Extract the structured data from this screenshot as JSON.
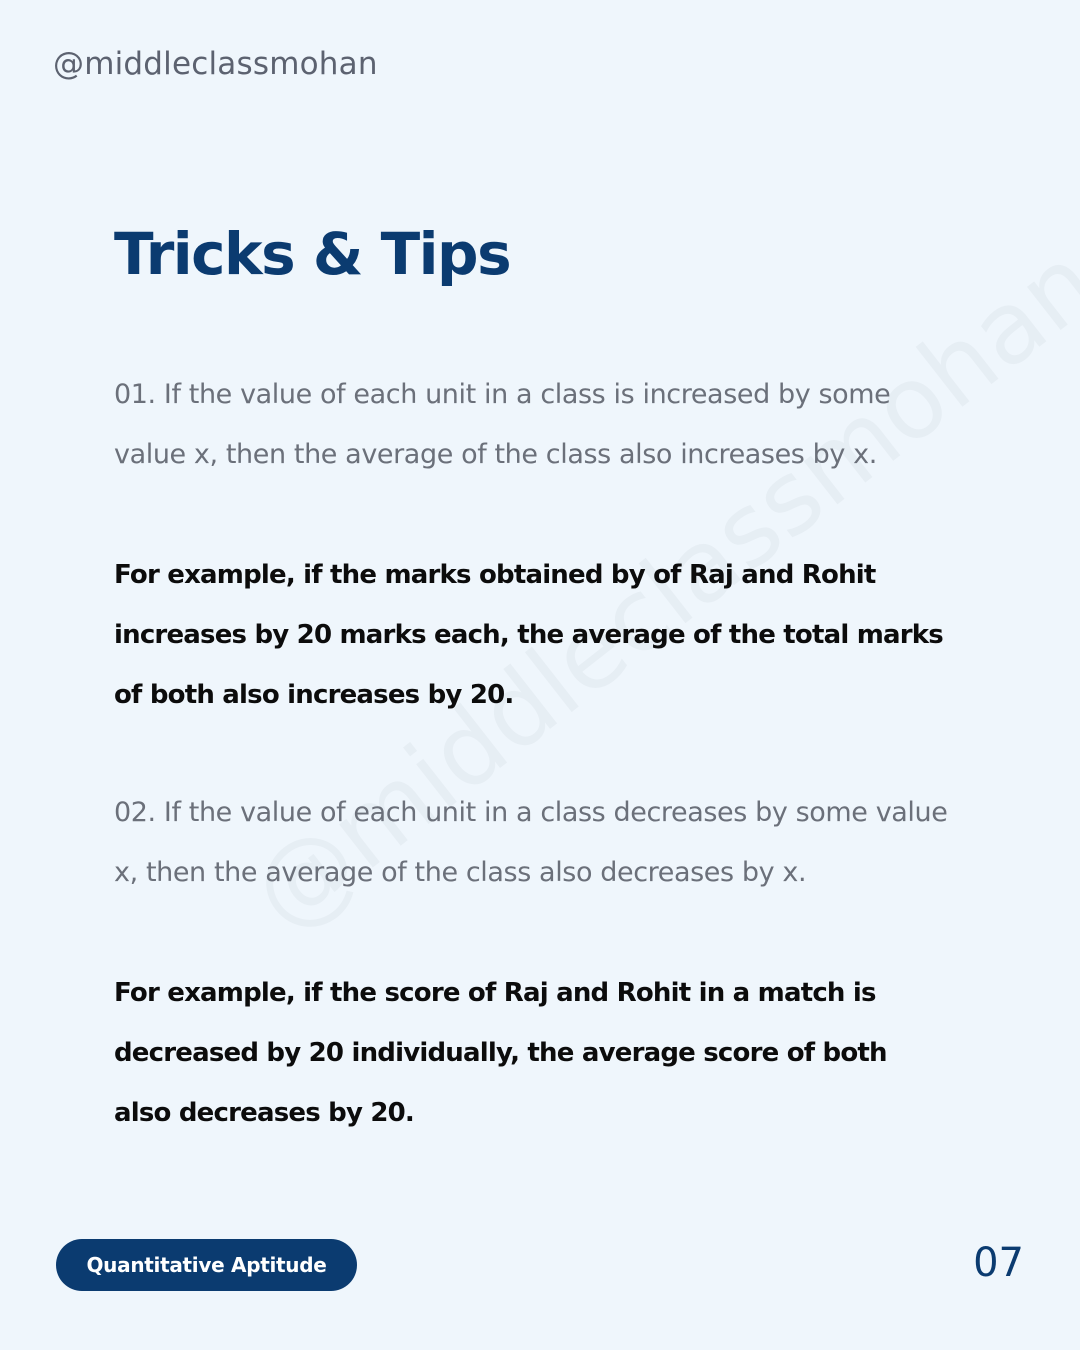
{
  "header": {
    "handle": "@middleclassmohan"
  },
  "watermark": {
    "text": "@middleclassmohan"
  },
  "title": "Tricks & Tips",
  "tips": [
    {
      "text": "01. If the value of each unit in a class is increased by some value x, then the average of the class also increases by x.",
      "example": "For example, if the marks obtained by of Raj and Rohit increases by 20 marks each, the average of the total marks of both also increases by 20."
    },
    {
      "text": "02. If the value of each unit in a class decreases by some value x, then the average of the class also decreases by x.",
      "example": "For example, if the score of Raj and Rohit in a match is decreased by 20 individually, the average score of both also decreases by 20."
    }
  ],
  "footer": {
    "category": "Quantitative Aptitude",
    "page_number": "07"
  },
  "colors": {
    "background": "#eff6fc",
    "accent": "#0b3b70",
    "muted_text": "#6b707a",
    "body_text": "#0c0c0c"
  }
}
